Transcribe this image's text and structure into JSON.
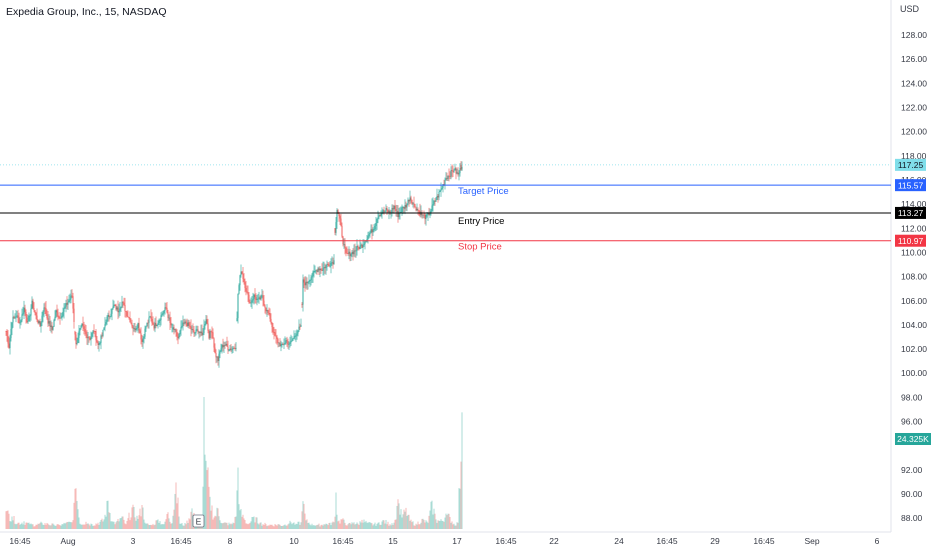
{
  "header": {
    "title": "Expedia Group, Inc., 15, NASDAQ",
    "currency": "USD"
  },
  "colors": {
    "up": "#26a69a",
    "down": "#ef5350",
    "up_vol": "#9fd7d0",
    "down_vol": "#f6b2b0",
    "target": "#2962ff",
    "entry": "#000000",
    "stop": "#f23645",
    "current": "#80deea",
    "volume_badge": "#26a69a",
    "axis_text": "#363a45",
    "grid": "#f0f3fa"
  },
  "chart_data": {
    "type": "candlestick",
    "ylim": [
      87,
      129
    ],
    "y_ticks": [
      "88.00",
      "90.00",
      "92.00",
      "96.00",
      "98.00",
      "100.00",
      "102.00",
      "104.00",
      "106.00",
      "108.00",
      "110.00",
      "112.00",
      "114.00",
      "116.00",
      "118.00",
      "120.00",
      "122.00",
      "124.00",
      "126.00",
      "128.00"
    ],
    "x_ticks": [
      "16:45",
      "Aug",
      "3",
      "16:45",
      "8",
      "10",
      "16:45",
      "15",
      "17",
      "16:45",
      "22",
      "24",
      "16:45",
      "29",
      "16:45",
      "Sep",
      "6"
    ],
    "price_path": [
      [
        0,
        103.5
      ],
      [
        3,
        102.2
      ],
      [
        6,
        104.4
      ],
      [
        10,
        104.8
      ],
      [
        14,
        104.2
      ],
      [
        18,
        105.4
      ],
      [
        22,
        104.1
      ],
      [
        26,
        105.8
      ],
      [
        30,
        104.7
      ],
      [
        34,
        103.9
      ],
      [
        38,
        105.6
      ],
      [
        42,
        104.3
      ],
      [
        46,
        103.6
      ],
      [
        50,
        105.1
      ],
      [
        54,
        104.6
      ],
      [
        58,
        105.3
      ],
      [
        62,
        105.9
      ],
      [
        66,
        106.4
      ],
      [
        70,
        102.3
      ],
      [
        73,
        103.4
      ],
      [
        76,
        103.9
      ],
      [
        80,
        103.2
      ],
      [
        84,
        102.9
      ],
      [
        88,
        103.6
      ],
      [
        92,
        102.3
      ],
      [
        96,
        103.1
      ],
      [
        100,
        104.4
      ],
      [
        104,
        104.9
      ],
      [
        108,
        105.6
      ],
      [
        112,
        105.2
      ],
      [
        116,
        105.9
      ],
      [
        120,
        105.1
      ],
      [
        124,
        104.4
      ],
      [
        128,
        103.6
      ],
      [
        132,
        104.1
      ],
      [
        136,
        102.6
      ],
      [
        140,
        103.9
      ],
      [
        144,
        104.6
      ],
      [
        148,
        103.9
      ],
      [
        152,
        104.3
      ],
      [
        156,
        104.9
      ],
      [
        160,
        105.4
      ],
      [
        164,
        104.1
      ],
      [
        168,
        103.6
      ],
      [
        172,
        102.9
      ],
      [
        176,
        103.9
      ],
      [
        180,
        104.2
      ],
      [
        184,
        103.8
      ],
      [
        188,
        103.3
      ],
      [
        192,
        103.6
      ],
      [
        196,
        103.1
      ],
      [
        200,
        104.6
      ],
      [
        203,
        103.1
      ],
      [
        206,
        103.6
      ],
      [
        209,
        101.6
      ],
      [
        212,
        101.1
      ],
      [
        215,
        102.1
      ],
      [
        218,
        102.4
      ],
      [
        222,
        102.1
      ],
      [
        226,
        102.0
      ],
      [
        230,
        102.3
      ],
      [
        232,
        106.6
      ],
      [
        235,
        108.6
      ],
      [
        238,
        107.6
      ],
      [
        241,
        106.6
      ],
      [
        244,
        105.8
      ],
      [
        248,
        106.4
      ],
      [
        252,
        106.0
      ],
      [
        256,
        106.3
      ],
      [
        260,
        105.3
      ],
      [
        264,
        104.6
      ],
      [
        268,
        103.2
      ],
      [
        272,
        102.6
      ],
      [
        276,
        102.2
      ],
      [
        280,
        102.7
      ],
      [
        284,
        102.4
      ],
      [
        288,
        103.0
      ],
      [
        292,
        103.6
      ],
      [
        295,
        103.8
      ],
      [
        297,
        107.6
      ],
      [
        300,
        107.4
      ],
      [
        304,
        107.9
      ],
      [
        308,
        108.3
      ],
      [
        312,
        108.7
      ],
      [
        316,
        108.6
      ],
      [
        320,
        108.9
      ],
      [
        324,
        109.1
      ],
      [
        328,
        109.3
      ],
      [
        329,
        111.8
      ],
      [
        331,
        113.6
      ],
      [
        334,
        112.6
      ],
      [
        337,
        110.9
      ],
      [
        340,
        109.8
      ],
      [
        344,
        109.9
      ],
      [
        348,
        110.1
      ],
      [
        352,
        110.4
      ],
      [
        356,
        110.6
      ],
      [
        360,
        111.1
      ],
      [
        364,
        111.6
      ],
      [
        368,
        112.1
      ],
      [
        372,
        113.1
      ],
      [
        376,
        113.3
      ],
      [
        380,
        113.5
      ],
      [
        384,
        113.3
      ],
      [
        388,
        113.8
      ],
      [
        392,
        113.1
      ],
      [
        396,
        113.6
      ],
      [
        400,
        113.9
      ],
      [
        404,
        114.6
      ],
      [
        408,
        113.9
      ],
      [
        412,
        113.5
      ],
      [
        416,
        113.1
      ],
      [
        420,
        112.9
      ],
      [
        424,
        113.3
      ],
      [
        428,
        114.1
      ],
      [
        432,
        114.7
      ],
      [
        436,
        115.4
      ],
      [
        440,
        116.2
      ],
      [
        444,
        116.5
      ],
      [
        448,
        116.9
      ],
      [
        452,
        116.4
      ],
      [
        456,
        117.25
      ]
    ],
    "volume_path": [
      [
        0,
        3.7
      ],
      [
        6,
        2.6
      ],
      [
        12,
        1.3
      ],
      [
        18,
        1.6
      ],
      [
        24,
        1.0
      ],
      [
        30,
        0.9
      ],
      [
        36,
        1.3
      ],
      [
        42,
        1.1
      ],
      [
        48,
        0.9
      ],
      [
        54,
        0.8
      ],
      [
        60,
        1.3
      ],
      [
        66,
        1.4
      ],
      [
        70,
        8.5
      ],
      [
        74,
        1.1
      ],
      [
        80,
        1.5
      ],
      [
        86,
        1.0
      ],
      [
        92,
        1.3
      ],
      [
        98,
        2.0
      ],
      [
        102,
        5.9
      ],
      [
        106,
        1.6
      ],
      [
        110,
        1.4
      ],
      [
        116,
        2.6
      ],
      [
        120,
        1.0
      ],
      [
        126,
        4.5
      ],
      [
        132,
        2.1
      ],
      [
        136,
        5.0
      ],
      [
        140,
        1.1
      ],
      [
        146,
        0.8
      ],
      [
        152,
        2.0
      ],
      [
        158,
        1.0
      ],
      [
        162,
        3.5
      ],
      [
        166,
        1.2
      ],
      [
        170,
        9.7
      ],
      [
        174,
        1.1
      ],
      [
        180,
        1.0
      ],
      [
        186,
        4.3
      ],
      [
        190,
        1.3
      ],
      [
        196,
        1.0
      ],
      [
        198,
        27.5
      ],
      [
        200,
        14.2
      ],
      [
        204,
        6.7
      ],
      [
        208,
        2.4
      ],
      [
        212,
        4.3
      ],
      [
        216,
        1.2
      ],
      [
        220,
        1.3
      ],
      [
        226,
        1.0
      ],
      [
        230,
        2.6
      ],
      [
        232,
        12.8
      ],
      [
        234,
        3.9
      ],
      [
        238,
        2.2
      ],
      [
        242,
        1.0
      ],
      [
        248,
        2.6
      ],
      [
        254,
        1.3
      ],
      [
        260,
        1.0
      ],
      [
        266,
        0.9
      ],
      [
        272,
        1.0
      ],
      [
        278,
        0.8
      ],
      [
        284,
        1.7
      ],
      [
        290,
        1.1
      ],
      [
        295,
        1.4
      ],
      [
        297,
        5.8
      ],
      [
        300,
        1.8
      ],
      [
        306,
        1.1
      ],
      [
        312,
        0.9
      ],
      [
        318,
        1.0
      ],
      [
        324,
        1.3
      ],
      [
        328,
        1.4
      ],
      [
        330,
        7.6
      ],
      [
        332,
        1.6
      ],
      [
        336,
        2.0
      ],
      [
        342,
        1.0
      ],
      [
        348,
        1.4
      ],
      [
        352,
        1.1
      ],
      [
        356,
        1.9
      ],
      [
        362,
        1.3
      ],
      [
        368,
        1.0
      ],
      [
        372,
        1.3
      ],
      [
        378,
        1.8
      ],
      [
        384,
        1.0
      ],
      [
        390,
        2.0
      ],
      [
        392,
        6.2
      ],
      [
        396,
        2.4
      ],
      [
        400,
        4.4
      ],
      [
        404,
        1.7
      ],
      [
        410,
        1.1
      ],
      [
        416,
        2.1
      ],
      [
        422,
        1.3
      ],
      [
        426,
        5.9
      ],
      [
        430,
        2.0
      ],
      [
        436,
        1.7
      ],
      [
        440,
        3.2
      ],
      [
        444,
        2.5
      ],
      [
        448,
        1.1
      ],
      [
        452,
        1.3
      ],
      [
        456,
        24.3
      ]
    ],
    "levels": [
      {
        "name": "Target Price",
        "price_text": "115.57",
        "value": 115.57,
        "color_key": "target"
      },
      {
        "name": "Entry Price",
        "price_text": "113.27",
        "value": 113.27,
        "color_key": "entry"
      },
      {
        "name": "Stop Price",
        "price_text": "110.97",
        "value": 110.97,
        "color_key": "stop"
      }
    ],
    "current_price": {
      "value": 117.25,
      "text": "117.25"
    },
    "volume_badge": "24.325K",
    "earnings_marker": "E"
  }
}
